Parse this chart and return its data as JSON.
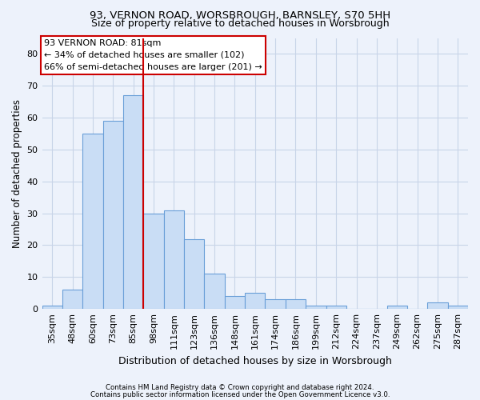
{
  "title_line1": "93, VERNON ROAD, WORSBROUGH, BARNSLEY, S70 5HH",
  "title_line2": "Size of property relative to detached houses in Worsbrough",
  "xlabel": "Distribution of detached houses by size in Worsbrough",
  "ylabel": "Number of detached properties",
  "categories": [
    "35sqm",
    "48sqm",
    "60sqm",
    "73sqm",
    "85sqm",
    "98sqm",
    "111sqm",
    "123sqm",
    "136sqm",
    "148sqm",
    "161sqm",
    "174sqm",
    "186sqm",
    "199sqm",
    "212sqm",
    "224sqm",
    "237sqm",
    "249sqm",
    "262sqm",
    "275sqm",
    "287sqm"
  ],
  "values": [
    1,
    6,
    55,
    59,
    67,
    30,
    31,
    22,
    11,
    4,
    5,
    3,
    3,
    1,
    1,
    0,
    0,
    1,
    0,
    2,
    1
  ],
  "bar_color": "#c9ddf5",
  "bar_edge_color": "#6a9fd8",
  "grid_color": "#c8d4e8",
  "vline_index": 5,
  "vline_color": "#cc0000",
  "annotation_text": "93 VERNON ROAD: 81sqm\n← 34% of detached houses are smaller (102)\n66% of semi-detached houses are larger (201) →",
  "annotation_box_color": "#ffffff",
  "annotation_box_edge": "#cc0000",
  "ylim": [
    0,
    85
  ],
  "yticks": [
    0,
    10,
    20,
    30,
    40,
    50,
    60,
    70,
    80
  ],
  "footer1": "Contains HM Land Registry data © Crown copyright and database right 2024.",
  "footer2": "Contains public sector information licensed under the Open Government Licence v3.0.",
  "bg_color": "#edf2fb"
}
